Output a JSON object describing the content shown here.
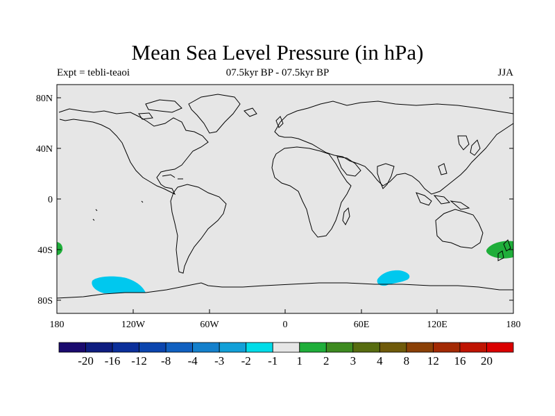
{
  "title": "Mean Sea Level Pressure (in hPa)",
  "subtitle_left": "Expt = tebli-teaoi",
  "subtitle_center": "07.5kyr BP - 07.5kyr BP",
  "subtitle_right": "JJA",
  "lat_ticks": [
    "80N",
    "40N",
    "0",
    "40S",
    "80S"
  ],
  "lon_ticks": [
    "180",
    "120W",
    "60W",
    "0",
    "60E",
    "120E",
    "180"
  ],
  "colors": {
    "ocean": "#e6e6e6",
    "coast": "#000000",
    "neg2": "#00c8ee",
    "pos2": "#1fae3a"
  },
  "colorbar": {
    "colors": [
      "#1a0a6e",
      "#0e1d80",
      "#0b2f9a",
      "#0b45ae",
      "#1060c0",
      "#1480cc",
      "#12a0d8",
      "#00dce8",
      "#e6e6e6",
      "#1fae3a",
      "#3d8a20",
      "#576c10",
      "#6f5a0a",
      "#8a4006",
      "#a32a04",
      "#bf1402",
      "#da0000"
    ],
    "labels": [
      "-20",
      "-16",
      "-12",
      "-8",
      "-4",
      "-3",
      "-2",
      "-1",
      "1",
      "2",
      "3",
      "4",
      "8",
      "12",
      "16",
      "20"
    ]
  }
}
